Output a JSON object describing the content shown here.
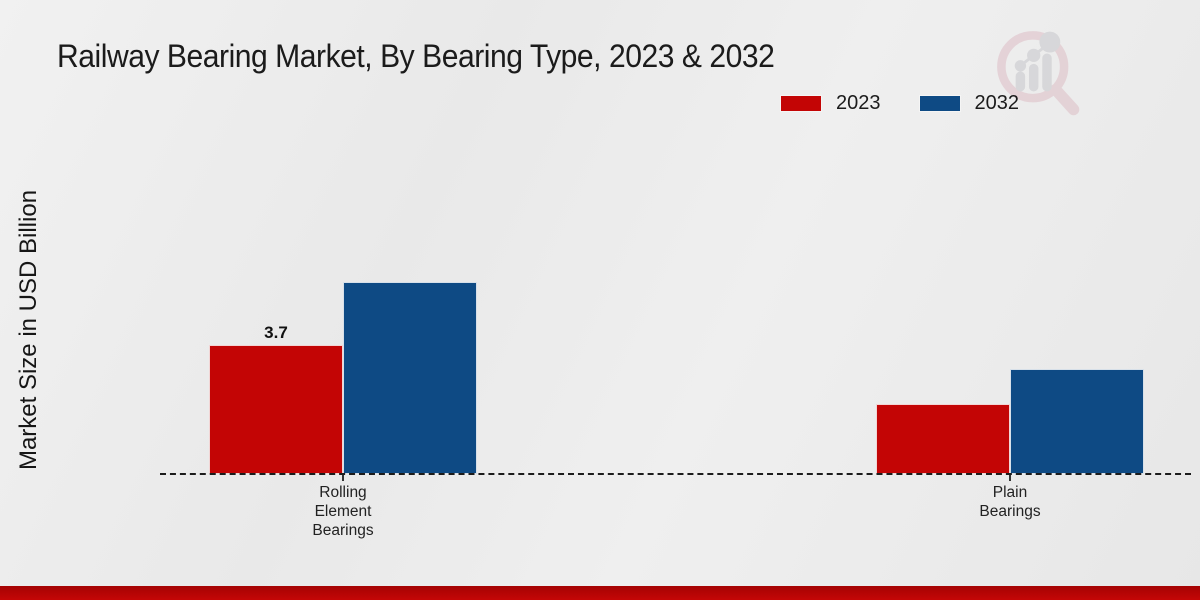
{
  "title": "Railway Bearing Market, By Bearing Type, 2023 & 2032",
  "y_axis_label": "Market Size in USD Billion",
  "legend": {
    "items": [
      {
        "label": "2023",
        "color": "#c30505"
      },
      {
        "label": "2032",
        "color": "#0e4a84"
      }
    ]
  },
  "watermark_icon": "magnifier-bar-chart-logo",
  "footer": {
    "color": "#c10505"
  },
  "chart_data": {
    "type": "bar",
    "title": "Railway Bearing Market, By Bearing Type, 2023 & 2032",
    "xlabel": "",
    "ylabel": "Market Size in USD Billion",
    "categories": [
      "Rolling Element Bearings",
      "Plain Bearings"
    ],
    "series": [
      {
        "name": "2023",
        "color": "#c30505",
        "values": [
          3.7,
          2.0
        ]
      },
      {
        "name": "2032",
        "color": "#0e4a84",
        "values": [
          5.5,
          3.0
        ]
      }
    ],
    "value_labels": [
      {
        "series_index": 0,
        "category_index": 0,
        "text": "3.7"
      }
    ],
    "ylim": [
      0,
      6
    ],
    "grid": false,
    "legend_position": "top-right",
    "baseline_style": "dashed"
  }
}
